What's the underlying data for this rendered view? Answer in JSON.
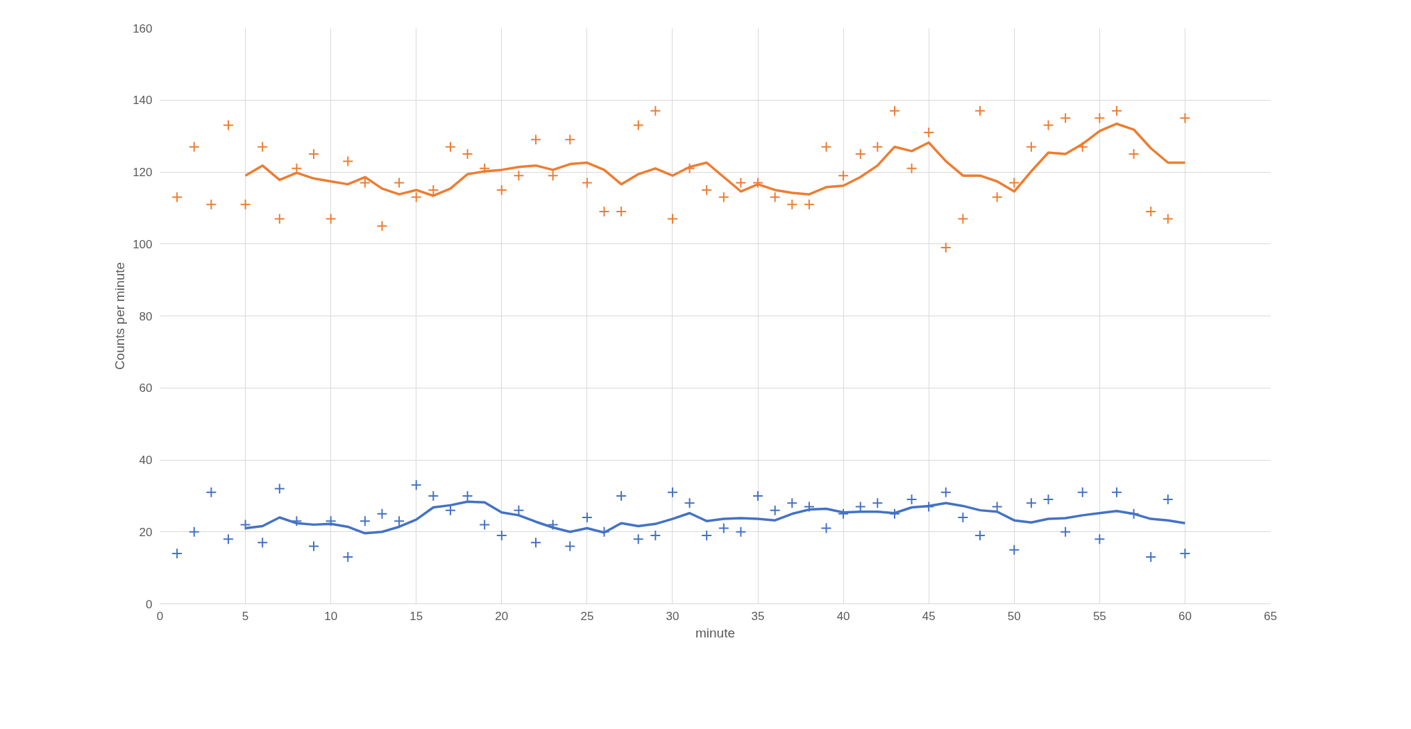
{
  "chart_data": {
    "type": "scatter",
    "xlabel": "minute",
    "ylabel": "Counts per minute",
    "xlim": [
      0,
      65
    ],
    "xticks": [
      0,
      5,
      10,
      15,
      20,
      25,
      30,
      35,
      40,
      45,
      50,
      55,
      60,
      65
    ],
    "ylim": [
      0,
      160
    ],
    "yticks": [
      0,
      20,
      40,
      60,
      80,
      100,
      120,
      140,
      160
    ],
    "grid": true,
    "x": [
      1,
      2,
      3,
      4,
      5,
      6,
      7,
      8,
      9,
      10,
      11,
      12,
      13,
      14,
      15,
      16,
      17,
      18,
      19,
      20,
      21,
      22,
      23,
      24,
      25,
      26,
      27,
      28,
      29,
      30,
      31,
      32,
      33,
      34,
      35,
      36,
      37,
      38,
      39,
      40,
      41,
      42,
      43,
      44,
      45,
      46,
      47,
      48,
      49,
      50,
      51,
      52,
      53,
      54,
      55,
      56,
      57,
      58,
      59,
      60
    ],
    "series": [
      {
        "marker": "cross",
        "color": "#ed7d31",
        "values": [
          113,
          127,
          111,
          133,
          111,
          127,
          107,
          121,
          125,
          107,
          123,
          117,
          105,
          117,
          113,
          115,
          127,
          125,
          121,
          115,
          119,
          129,
          119,
          129,
          117,
          109,
          109,
          133,
          137,
          107,
          121,
          115,
          113,
          117,
          117,
          113,
          111,
          111,
          127,
          119,
          125,
          127,
          137,
          121,
          131,
          99,
          107,
          137,
          113,
          117,
          127,
          133,
          135,
          127,
          135,
          137,
          125,
          109,
          107,
          135
        ]
      },
      {
        "marker": "cross",
        "color": "#4472c4",
        "values": [
          14,
          20,
          31,
          18,
          22,
          17,
          32,
          23,
          16,
          23,
          13,
          23,
          25,
          23,
          33,
          30,
          26,
          30,
          22,
          19,
          26,
          17,
          22,
          16,
          24,
          20,
          30,
          18,
          19,
          31,
          28,
          19,
          21,
          20,
          30,
          26,
          28,
          27,
          21,
          25,
          27,
          28,
          25,
          29,
          27,
          31,
          24,
          19,
          27,
          15,
          28,
          29,
          20,
          31,
          18,
          31,
          25,
          13,
          29,
          14
        ]
      },
      {
        "type": "line",
        "marker": "none",
        "line_style": "solid",
        "color": "#ed7d31",
        "x": [
          5,
          6,
          7,
          8,
          9,
          10,
          11,
          12,
          13,
          14,
          15,
          16,
          17,
          18,
          19,
          20,
          21,
          22,
          23,
          24,
          25,
          26,
          27,
          28,
          29,
          30,
          31,
          32,
          33,
          34,
          35,
          36,
          37,
          38,
          39,
          40,
          41,
          42,
          43,
          44,
          45,
          46,
          47,
          48,
          49,
          50,
          51,
          52,
          53,
          54,
          55,
          56,
          57,
          58,
          59,
          60
        ],
        "values": [
          119,
          121.8,
          117.8,
          119.8,
          118.2,
          117.4,
          116.6,
          118.6,
          115.4,
          113.8,
          115,
          113.4,
          115.4,
          119.4,
          120.2,
          120.6,
          121.4,
          121.8,
          120.6,
          122.2,
          122.6,
          120.6,
          116.6,
          119.4,
          121,
          119,
          121.4,
          122.6,
          118.6,
          114.6,
          116.6,
          115,
          114.2,
          113.8,
          115.8,
          116.2,
          118.6,
          121.8,
          127,
          125.8,
          128.2,
          123,
          119,
          119,
          117.4,
          114.6,
          120.2,
          125.4,
          125,
          127.8,
          131.4,
          133.4,
          131.8,
          126.6,
          122.6,
          122.6
        ]
      },
      {
        "type": "line",
        "marker": "none",
        "line_style": "solid",
        "color": "#4472c4",
        "x": [
          5,
          6,
          7,
          8,
          9,
          10,
          11,
          12,
          13,
          14,
          15,
          16,
          17,
          18,
          19,
          20,
          21,
          22,
          23,
          24,
          25,
          26,
          27,
          28,
          29,
          30,
          31,
          32,
          33,
          34,
          35,
          36,
          37,
          38,
          39,
          40,
          41,
          42,
          43,
          44,
          45,
          46,
          47,
          48,
          49,
          50,
          51,
          52,
          53,
          54,
          55,
          56,
          57,
          58,
          59,
          60
        ],
        "values": [
          21,
          21.6,
          24,
          22.4,
          22,
          22.2,
          21.4,
          19.6,
          20,
          21.4,
          23.4,
          26.8,
          27.4,
          28.4,
          28.2,
          25.4,
          24.6,
          22.8,
          21.2,
          20,
          21,
          19.8,
          22.4,
          21.6,
          22.2,
          23.6,
          25.2,
          23,
          23.6,
          23.8,
          23.6,
          23.2,
          25,
          26.2,
          26.4,
          25.4,
          25.6,
          25.6,
          25.2,
          26.8,
          27.2,
          28,
          27.2,
          26,
          25.6,
          23.2,
          22.6,
          23.6,
          23.8,
          24.6,
          25.2,
          25.8,
          25,
          23.6,
          23.2,
          22.4
        ]
      }
    ]
  }
}
